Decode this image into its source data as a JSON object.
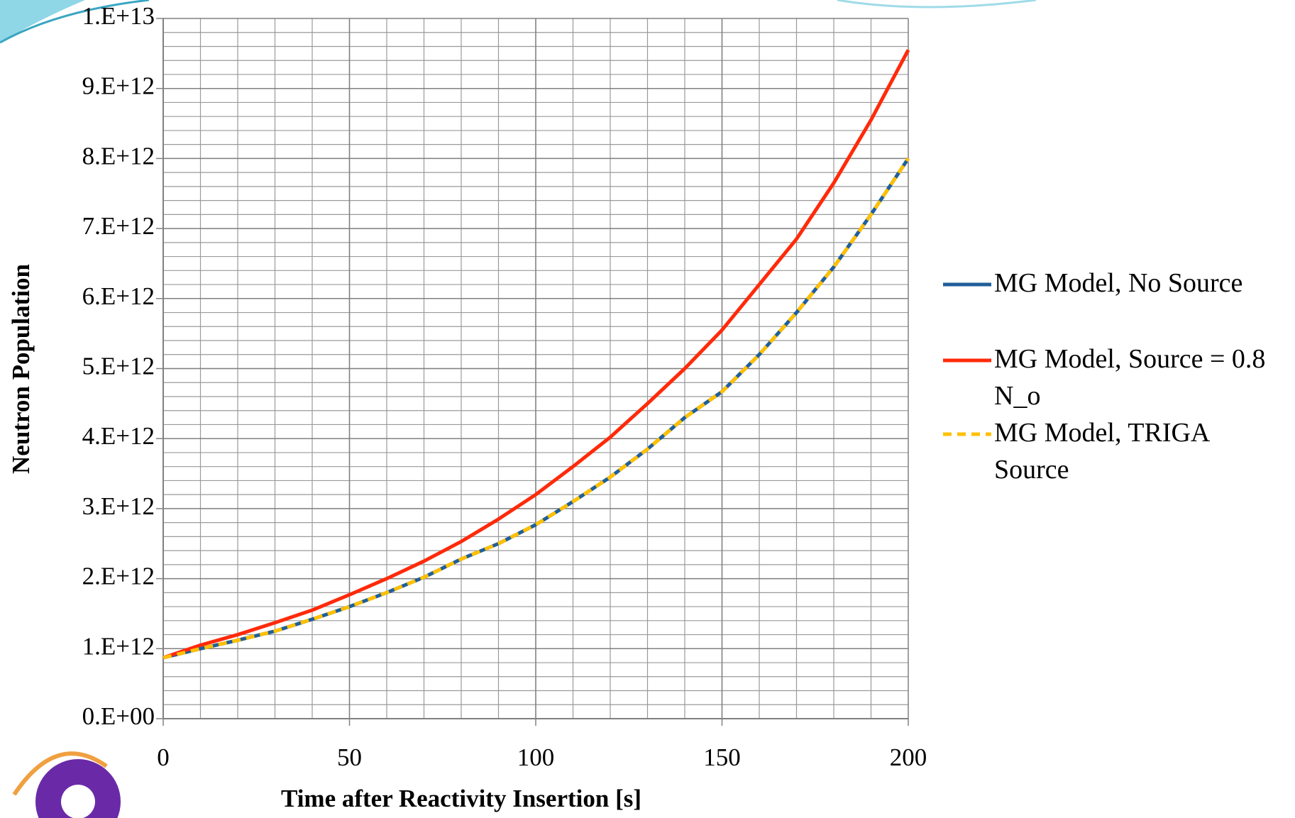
{
  "chart_data": {
    "type": "line",
    "x_label": "Time after Reactivity Insertion [s]",
    "y_label": "Neutron Population",
    "x": [
      0,
      10,
      20,
      30,
      40,
      50,
      60,
      70,
      80,
      90,
      100,
      110,
      120,
      130,
      140,
      150,
      160,
      170,
      180,
      190,
      200
    ],
    "series": [
      {
        "name": "MG Model, No Source",
        "color": "#1f5f9a",
        "style": "solid",
        "values": [
          870000000000.0,
          1000000000000.0,
          1120000000000.0,
          1250000000000.0,
          1420000000000.0,
          1600000000000.0,
          1800000000000.0,
          2020000000000.0,
          2280000000000.0,
          2500000000000.0,
          2770000000000.0,
          3100000000000.0,
          3450000000000.0,
          3850000000000.0,
          4300000000000.0,
          4670000000000.0,
          5200000000000.0,
          5800000000000.0,
          6450000000000.0,
          7200000000000.0,
          8000000000000.0
        ]
      },
      {
        "name": "MG Model, Source = 0.8 N_o",
        "color": "#ff2a0a",
        "style": "solid",
        "values": [
          870000000000.0,
          1050000000000.0,
          1200000000000.0,
          1370000000000.0,
          1550000000000.0,
          1770000000000.0,
          2000000000000.0,
          2250000000000.0,
          2530000000000.0,
          2850000000000.0,
          3200000000000.0,
          3600000000000.0,
          4020000000000.0,
          4500000000000.0,
          5000000000000.0,
          5550000000000.0,
          6200000000000.0,
          6850000000000.0,
          7650000000000.0,
          8550000000000.0,
          9550000000000.0
        ]
      },
      {
        "name": "MG Model, TRIGA Source",
        "color": "#ffc000",
        "style": "dashed",
        "values": [
          870000000000.0,
          1000000000000.0,
          1120000000000.0,
          1250000000000.0,
          1420000000000.0,
          1600000000000.0,
          1800000000000.0,
          2020000000000.0,
          2280000000000.0,
          2500000000000.0,
          2770000000000.0,
          3100000000000.0,
          3450000000000.0,
          3850000000000.0,
          4300000000000.0,
          4670000000000.0,
          5200000000000.0,
          5800000000000.0,
          6450000000000.0,
          7200000000000.0,
          8000000000000.0
        ]
      }
    ],
    "xlim": [
      0,
      200
    ],
    "xticks": [
      0,
      50,
      100,
      150,
      200
    ],
    "ylim": [
      0,
      10000000000000
    ],
    "yticks": [
      {
        "value": 0,
        "label": "0.E+00"
      },
      {
        "value": 1000000000000,
        "label": "1.E+12"
      },
      {
        "value": 2000000000000,
        "label": "2.E+12"
      },
      {
        "value": 3000000000000,
        "label": "3.E+12"
      },
      {
        "value": 4000000000000,
        "label": "4.E+12"
      },
      {
        "value": 5000000000000,
        "label": "5.E+12"
      },
      {
        "value": 6000000000000,
        "label": "6.E+12"
      },
      {
        "value": 7000000000000,
        "label": "7.E+12"
      },
      {
        "value": 8000000000000,
        "label": "8.E+12"
      },
      {
        "value": 9000000000000,
        "label": "9.E+12"
      },
      {
        "value": 10000000000000,
        "label": "1.E+13"
      }
    ],
    "grid": true,
    "minor_grid": {
      "x": 10,
      "y": 200000000000
    },
    "legend": "right"
  }
}
